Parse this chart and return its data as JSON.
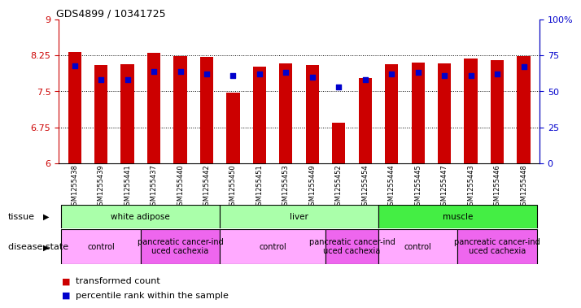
{
  "title": "GDS4899 / 10341725",
  "samples": [
    "GSM1255438",
    "GSM1255439",
    "GSM1255441",
    "GSM1255437",
    "GSM1255440",
    "GSM1255442",
    "GSM1255450",
    "GSM1255451",
    "GSM1255453",
    "GSM1255449",
    "GSM1255452",
    "GSM1255454",
    "GSM1255444",
    "GSM1255445",
    "GSM1255447",
    "GSM1255443",
    "GSM1255446",
    "GSM1255448"
  ],
  "transformed_count": [
    8.32,
    8.05,
    8.06,
    8.31,
    8.24,
    8.22,
    7.47,
    8.02,
    8.09,
    8.05,
    6.84,
    7.78,
    8.07,
    8.1,
    8.08,
    8.18,
    8.16,
    8.24
  ],
  "percentile_rank": [
    68,
    58,
    58,
    64,
    64,
    62,
    61,
    62,
    63,
    60,
    53,
    58,
    62,
    63,
    61,
    61,
    62,
    67
  ],
  "ylim_left": [
    6,
    9
  ],
  "ylim_right": [
    0,
    100
  ],
  "yticks_left": [
    6,
    6.75,
    7.5,
    8.25,
    9
  ],
  "yticks_right": [
    0,
    25,
    50,
    75,
    100
  ],
  "ytick_labels_left": [
    "6",
    "6.75",
    "7.5",
    "8.25",
    "9"
  ],
  "ytick_labels_right": [
    "0",
    "25",
    "50",
    "75",
    "100%"
  ],
  "bar_color": "#cc0000",
  "dot_color": "#0000cc",
  "background_color": "#ffffff",
  "left_axis_color": "#cc0000",
  "right_axis_color": "#0000cc",
  "tissue_groups": [
    {
      "label": "white adipose",
      "start": 0,
      "end": 5,
      "color": "#aaffaa"
    },
    {
      "label": "liver",
      "start": 6,
      "end": 11,
      "color": "#aaffaa"
    },
    {
      "label": "muscle",
      "start": 12,
      "end": 17,
      "color": "#44ee44"
    }
  ],
  "disease_groups": [
    {
      "label": "control",
      "start": 0,
      "end": 2,
      "color": "#ffaaff"
    },
    {
      "label": "pancreatic cancer-ind\nuced cachexia",
      "start": 3,
      "end": 5,
      "color": "#ee66ee"
    },
    {
      "label": "control",
      "start": 6,
      "end": 9,
      "color": "#ffaaff"
    },
    {
      "label": "pancreatic cancer-ind\nuced cachexia",
      "start": 10,
      "end": 11,
      "color": "#ee66ee"
    },
    {
      "label": "control",
      "start": 12,
      "end": 14,
      "color": "#ffaaff"
    },
    {
      "label": "pancreatic cancer-ind\nuced cachexia",
      "start": 15,
      "end": 17,
      "color": "#ee66ee"
    }
  ],
  "tissue_row_label": "tissue",
  "disease_row_label": "disease state",
  "legend_red": "transformed count",
  "legend_blue": "percentile rank within the sample",
  "bar_width": 0.5,
  "xticklabel_bg": "#cccccc",
  "xticklabel_fontsize": 6.0,
  "bar_fontsize": 8,
  "annotation_fontsize": 7.5
}
